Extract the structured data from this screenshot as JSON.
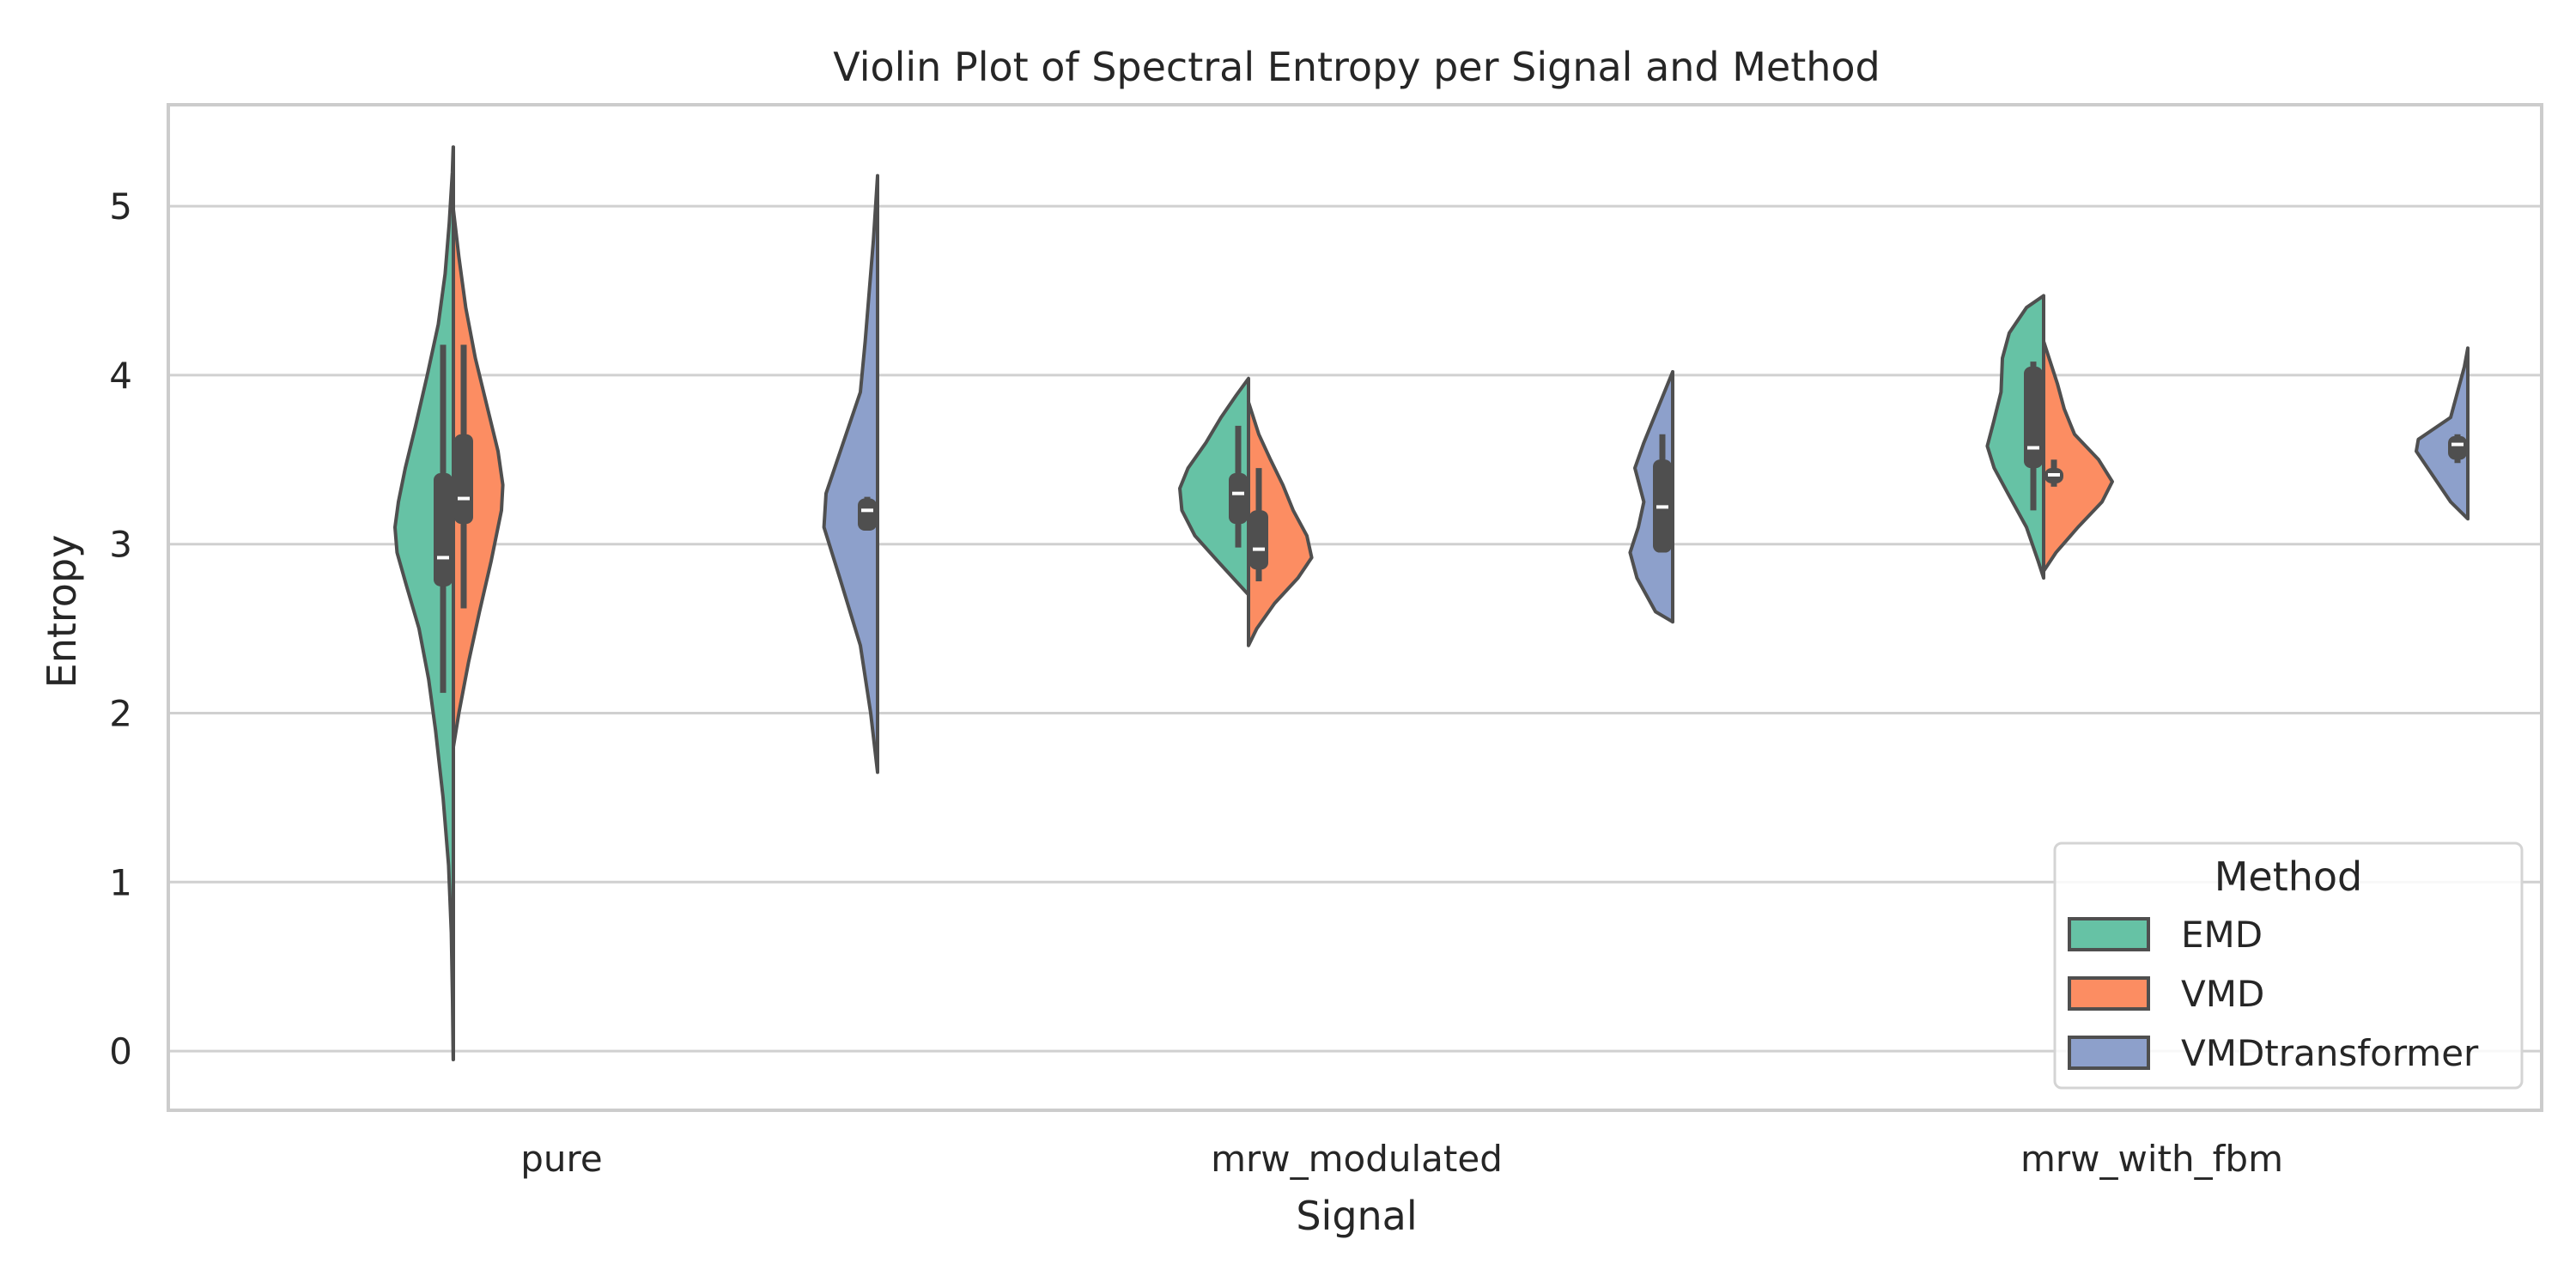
{
  "chart_data": {
    "type": "violin",
    "title": "Violin Plot of Spectral Entropy per Signal and Method",
    "xlabel": "Signal",
    "ylabel": "Entropy",
    "categories": [
      "pure",
      "mrw_modulated",
      "mrw_with_fbm"
    ],
    "ylim": [
      -0.35,
      5.6
    ],
    "yticks": [
      0,
      1,
      2,
      3,
      4,
      5
    ],
    "grid": true,
    "legend": {
      "title": "Method",
      "position": "lower-right"
    },
    "series": [
      {
        "name": "EMD",
        "color": "#66c2a5",
        "distributions": [
          {
            "category": "pure",
            "min": -0.05,
            "max": 5.35,
            "q1": 2.75,
            "median": 2.92,
            "q3": 3.42,
            "whisker_low": 2.12,
            "whisker_high": 4.18,
            "profile": [
              [
                -0.05,
                0.003
              ],
              [
                0.3,
                0.012
              ],
              [
                0.7,
                0.03
              ],
              [
                1.1,
                0.07
              ],
              [
                1.5,
                0.15
              ],
              [
                1.9,
                0.26
              ],
              [
                2.2,
                0.36
              ],
              [
                2.5,
                0.5
              ],
              [
                2.75,
                0.68
              ],
              [
                2.95,
                0.82
              ],
              [
                3.1,
                0.85
              ],
              [
                3.25,
                0.8
              ],
              [
                3.45,
                0.7
              ],
              [
                3.7,
                0.55
              ],
              [
                4.0,
                0.38
              ],
              [
                4.3,
                0.22
              ],
              [
                4.6,
                0.12
              ],
              [
                4.9,
                0.06
              ],
              [
                5.2,
                0.015
              ],
              [
                5.35,
                0.003
              ]
            ]
          },
          {
            "category": "mrw_modulated",
            "min": 2.7,
            "max": 3.98,
            "q1": 3.12,
            "median": 3.3,
            "q3": 3.42,
            "whisker_low": 2.98,
            "whisker_high": 3.7,
            "profile": [
              [
                2.7,
                0.0
              ],
              [
                2.78,
                0.18
              ],
              [
                2.9,
                0.45
              ],
              [
                3.05,
                0.78
              ],
              [
                3.2,
                0.97
              ],
              [
                3.33,
                1.0
              ],
              [
                3.45,
                0.88
              ],
              [
                3.6,
                0.62
              ],
              [
                3.75,
                0.4
              ],
              [
                3.88,
                0.18
              ],
              [
                3.98,
                0.0
              ]
            ]
          },
          {
            "category": "mrw_with_fbm",
            "min": 2.8,
            "max": 4.47,
            "q1": 3.45,
            "median": 3.57,
            "q3": 4.05,
            "whisker_low": 3.2,
            "whisker_high": 4.08,
            "profile": [
              [
                2.8,
                0.0
              ],
              [
                2.9,
                0.08
              ],
              [
                3.1,
                0.25
              ],
              [
                3.3,
                0.52
              ],
              [
                3.45,
                0.72
              ],
              [
                3.58,
                0.82
              ],
              [
                3.72,
                0.73
              ],
              [
                3.9,
                0.62
              ],
              [
                4.1,
                0.6
              ],
              [
                4.25,
                0.5
              ],
              [
                4.4,
                0.25
              ],
              [
                4.47,
                0.0
              ]
            ]
          }
        ]
      },
      {
        "name": "VMD",
        "color": "#fc8d62",
        "distributions": [
          {
            "category": "pure",
            "min": 1.8,
            "max": 4.98,
            "q1": 3.12,
            "median": 3.27,
            "q3": 3.65,
            "whisker_low": 2.62,
            "whisker_high": 4.18,
            "profile": [
              [
                1.8,
                0.0
              ],
              [
                2.0,
                0.08
              ],
              [
                2.3,
                0.22
              ],
              [
                2.6,
                0.38
              ],
              [
                2.9,
                0.55
              ],
              [
                3.2,
                0.7
              ],
              [
                3.35,
                0.72
              ],
              [
                3.55,
                0.65
              ],
              [
                3.8,
                0.5
              ],
              [
                4.1,
                0.32
              ],
              [
                4.4,
                0.18
              ],
              [
                4.7,
                0.08
              ],
              [
                4.98,
                0.0
              ]
            ]
          },
          {
            "category": "mrw_modulated",
            "min": 2.4,
            "max": 3.84,
            "q1": 2.85,
            "median": 2.97,
            "q3": 3.2,
            "whisker_low": 2.78,
            "whisker_high": 3.45,
            "profile": [
              [
                2.4,
                0.0
              ],
              [
                2.5,
                0.12
              ],
              [
                2.65,
                0.38
              ],
              [
                2.8,
                0.72
              ],
              [
                2.92,
                0.92
              ],
              [
                3.05,
                0.85
              ],
              [
                3.2,
                0.65
              ],
              [
                3.35,
                0.5
              ],
              [
                3.5,
                0.32
              ],
              [
                3.65,
                0.15
              ],
              [
                3.84,
                0.0
              ]
            ]
          },
          {
            "category": "mrw_with_fbm",
            "min": 2.84,
            "max": 4.2,
            "q1": 3.36,
            "median": 3.41,
            "q3": 3.45,
            "whisker_low": 3.34,
            "whisker_high": 3.5,
            "profile": [
              [
                2.84,
                0.0
              ],
              [
                2.95,
                0.18
              ],
              [
                3.1,
                0.5
              ],
              [
                3.25,
                0.85
              ],
              [
                3.37,
                1.0
              ],
              [
                3.5,
                0.8
              ],
              [
                3.65,
                0.45
              ],
              [
                3.8,
                0.3
              ],
              [
                3.95,
                0.2
              ],
              [
                4.1,
                0.08
              ],
              [
                4.2,
                0.0
              ]
            ]
          }
        ]
      },
      {
        "name": "VMDtransformer",
        "color": "#8da0cb",
        "distributions": [
          {
            "category": "pure",
            "min": 1.65,
            "max": 5.18,
            "q1": 3.08,
            "median": 3.2,
            "q3": 3.27,
            "whisker_low": 3.08,
            "whisker_high": 3.28,
            "profile": [
              [
                1.65,
                0.0
              ],
              [
                2.0,
                0.1
              ],
              [
                2.4,
                0.25
              ],
              [
                2.8,
                0.55
              ],
              [
                3.1,
                0.78
              ],
              [
                3.3,
                0.75
              ],
              [
                3.6,
                0.5
              ],
              [
                3.9,
                0.25
              ],
              [
                4.2,
                0.18
              ],
              [
                4.5,
                0.12
              ],
              [
                4.8,
                0.06
              ],
              [
                5.18,
                0.0
              ]
            ]
          },
          {
            "category": "mrw_modulated",
            "min": 2.54,
            "max": 4.02,
            "q1": 2.95,
            "median": 3.22,
            "q3": 3.5,
            "whisker_low": 2.95,
            "whisker_high": 3.65,
            "profile": [
              [
                2.54,
                0.0
              ],
              [
                2.6,
                0.25
              ],
              [
                2.8,
                0.52
              ],
              [
                2.95,
                0.62
              ],
              [
                3.1,
                0.5
              ],
              [
                3.25,
                0.42
              ],
              [
                3.45,
                0.55
              ],
              [
                3.6,
                0.42
              ],
              [
                3.8,
                0.22
              ],
              [
                4.02,
                0.0
              ]
            ]
          },
          {
            "category": "mrw_with_fbm",
            "min": 3.15,
            "max": 4.16,
            "q1": 3.5,
            "median": 3.59,
            "q3": 3.64,
            "whisker_low": 3.48,
            "whisker_high": 3.65,
            "profile": [
              [
                3.15,
                0.0
              ],
              [
                3.25,
                0.25
              ],
              [
                3.4,
                0.5
              ],
              [
                3.55,
                0.75
              ],
              [
                3.62,
                0.72
              ],
              [
                3.75,
                0.25
              ],
              [
                3.9,
                0.15
              ],
              [
                4.05,
                0.05
              ],
              [
                4.16,
                0.0
              ]
            ]
          }
        ]
      }
    ]
  }
}
